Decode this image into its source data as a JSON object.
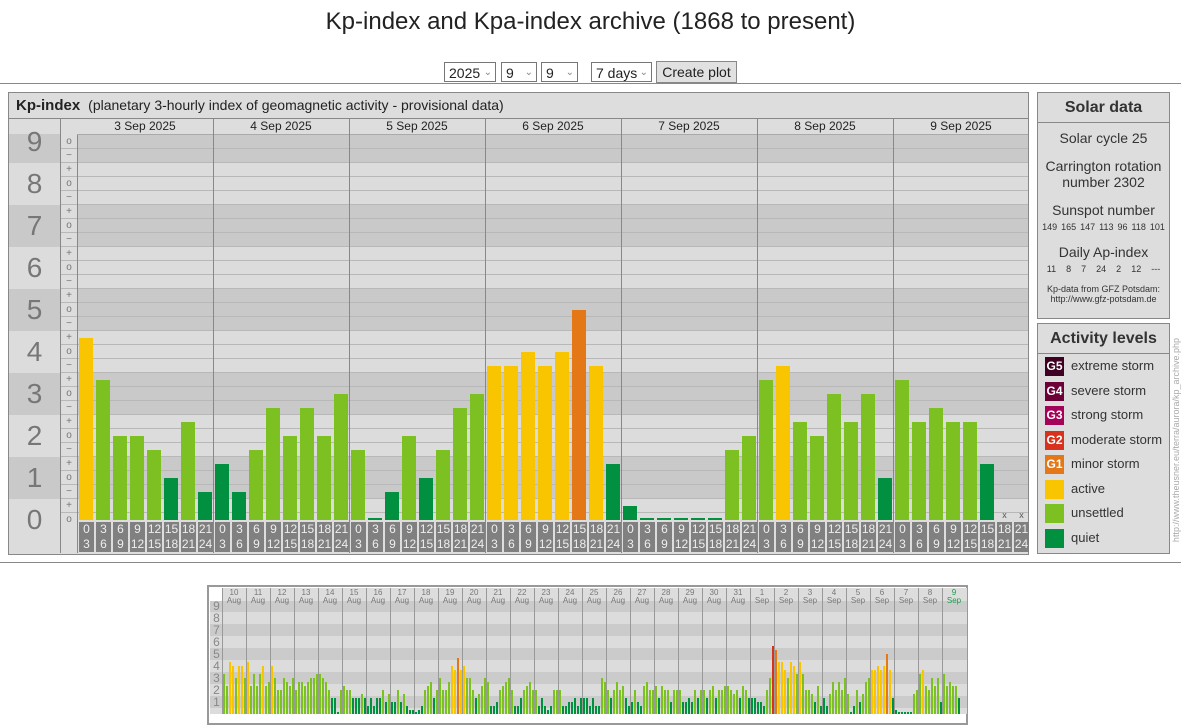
{
  "title": "Kp-index and Kpa-index archive (1868 to present)",
  "controls": {
    "year": "2025",
    "month": "9",
    "day": "9",
    "range": "7 days",
    "create_button": "Create plot"
  },
  "colors": {
    "quiet": "#00903f",
    "unsettled": "#7cc121",
    "active": "#f8c500",
    "G1": "#e47816",
    "G2": "#d8311d",
    "G3": "#a5035a",
    "G4": "#6e0038",
    "G5": "#3f0022"
  },
  "chart_data": [
    {
      "type": "bar",
      "title": "Kp-index",
      "subtitle": "(planetary 3-hourly index of geomagnetic activity - provisional data)",
      "ylim": [
        0,
        9
      ],
      "y_ticks": [
        "0",
        "1",
        "2",
        "3",
        "4",
        "5",
        "6",
        "7",
        "8",
        "9"
      ],
      "sub_ticks": {
        "minus": "−",
        "zero": "o",
        "plus": "+"
      },
      "missing_label": "x",
      "x_intervals": [
        [
          "0",
          "3"
        ],
        [
          "3",
          "6"
        ],
        [
          "6",
          "9"
        ],
        [
          "9",
          "12"
        ],
        [
          "12",
          "15"
        ],
        [
          "15",
          "18"
        ],
        [
          "18",
          "21"
        ],
        [
          "21",
          "24"
        ]
      ],
      "days": [
        {
          "label": "3 Sep 2025",
          "values": [
            4.33,
            3.33,
            2,
            2,
            1.67,
            1,
            2.33,
            0.67
          ]
        },
        {
          "label": "4 Sep 2025",
          "values": [
            1.33,
            0.67,
            1.67,
            2.67,
            2,
            2.67,
            2,
            3
          ]
        },
        {
          "label": "5 Sep 2025",
          "values": [
            1.67,
            0,
            0.67,
            2,
            1,
            1.67,
            2.67,
            3
          ]
        },
        {
          "label": "6 Sep 2025",
          "values": [
            3.67,
            3.67,
            4,
            3.67,
            4,
            5,
            3.67,
            1.33
          ]
        },
        {
          "label": "7 Sep 2025",
          "values": [
            0.33,
            0,
            0,
            0,
            0,
            0,
            1.67,
            2
          ]
        },
        {
          "label": "8 Sep 2025",
          "values": [
            3.33,
            3.67,
            2.33,
            2,
            3,
            2.33,
            3,
            1
          ]
        },
        {
          "label": "9 Sep 2025",
          "values": [
            3.33,
            2.33,
            2.67,
            2.33,
            2.33,
            1.33,
            null,
            null
          ]
        }
      ]
    },
    {
      "type": "bar",
      "title": "31-day overview",
      "ylim": [
        0,
        9
      ],
      "y_ticks": [
        "1",
        "2",
        "3",
        "4",
        "5",
        "6",
        "7",
        "8",
        "9"
      ],
      "days": [
        {
          "day": "10",
          "month": "Aug",
          "values": [
            3.33,
            2.33,
            4.33,
            4,
            3,
            4,
            4,
            3
          ]
        },
        {
          "day": "11",
          "month": "Aug",
          "values": [
            4.33,
            2.33,
            3.33,
            2.33,
            3.33,
            4,
            2.33,
            2.67
          ]
        },
        {
          "day": "12",
          "month": "Aug",
          "values": [
            4,
            3,
            2,
            2,
            3,
            2.67,
            2.33,
            3
          ]
        },
        {
          "day": "13",
          "month": "Aug",
          "values": [
            2,
            2.67,
            2.67,
            2.33,
            2.67,
            3,
            3,
            3.33
          ]
        },
        {
          "day": "14",
          "month": "Aug",
          "values": [
            3.33,
            3,
            2.67,
            2,
            1.33,
            1.33,
            0,
            2
          ]
        },
        {
          "day": "15",
          "month": "Aug",
          "values": [
            2.33,
            2,
            2,
            1.33,
            1.33,
            1.33,
            1.67,
            1.33
          ]
        },
        {
          "day": "16",
          "month": "Aug",
          "values": [
            0.67,
            1.33,
            0.67,
            1.33,
            1.33,
            2,
            1,
            1.67
          ]
        },
        {
          "day": "17",
          "month": "Aug",
          "values": [
            1,
            1,
            2,
            1,
            1.67,
            0.67,
            0.33,
            0.33
          ]
        },
        {
          "day": "18",
          "month": "Aug",
          "values": [
            0,
            0.33,
            0.67,
            2,
            2.33,
            2.67,
            1.33,
            2
          ]
        },
        {
          "day": "19",
          "month": "Aug",
          "values": [
            3,
            2,
            2,
            2.67,
            4,
            3.67,
            4.67,
            3.67
          ]
        },
        {
          "day": "20",
          "month": "Aug",
          "values": [
            4,
            3,
            3,
            2,
            1.33,
            1.67,
            2.33,
            3
          ]
        },
        {
          "day": "21",
          "month": "Aug",
          "values": [
            2.67,
            0.67,
            0.67,
            1,
            2,
            2.33,
            2.67,
            3
          ]
        },
        {
          "day": "22",
          "month": "Aug",
          "values": [
            2,
            0.67,
            0.67,
            1.33,
            2,
            2.33,
            2.67,
            2
          ]
        },
        {
          "day": "23",
          "month": "Aug",
          "values": [
            2,
            0.67,
            1.33,
            0.67,
            0.33,
            0.67,
            2,
            2
          ]
        },
        {
          "day": "24",
          "month": "Aug",
          "values": [
            2,
            0.67,
            0.67,
            1,
            1,
            1.33,
            0.67,
            1.33
          ]
        },
        {
          "day": "25",
          "month": "Aug",
          "values": [
            1.33,
            1.33,
            0.67,
            1.33,
            0.67,
            0.67,
            3,
            2.67
          ]
        },
        {
          "day": "26",
          "month": "Aug",
          "values": [
            2,
            1.33,
            2,
            2.67,
            2,
            2.33,
            1.33,
            0.67
          ]
        },
        {
          "day": "27",
          "month": "Aug",
          "values": [
            1,
            2,
            1,
            0.67,
            2.33,
            2.67,
            2,
            2
          ]
        },
        {
          "day": "28",
          "month": "Aug",
          "values": [
            2.33,
            1.33,
            2.33,
            2,
            2,
            1,
            2,
            2
          ]
        },
        {
          "day": "29",
          "month": "Aug",
          "values": [
            2,
            1,
            1,
            1.33,
            1,
            2,
            1.33,
            2
          ]
        },
        {
          "day": "30",
          "month": "Aug",
          "values": [
            2,
            1.33,
            2,
            2.33,
            1.33,
            2,
            2,
            2.33
          ]
        },
        {
          "day": "31",
          "month": "Aug",
          "values": [
            2.33,
            2,
            1.67,
            2,
            1.33,
            2.33,
            2,
            1.33
          ]
        },
        {
          "day": "1",
          "month": "Sep",
          "values": [
            1.33,
            1.33,
            1,
            1,
            0.67,
            2,
            3,
            5.67
          ]
        },
        {
          "day": "2",
          "month": "Sep",
          "values": [
            5.33,
            4.33,
            4.33,
            3.67,
            3,
            4.33,
            4,
            3.33
          ]
        },
        {
          "day": "3",
          "month": "Sep",
          "values": [
            4.33,
            3.33,
            2,
            2,
            1.67,
            1,
            2.33,
            0.67
          ]
        },
        {
          "day": "4",
          "month": "Sep",
          "values": [
            1.33,
            0.67,
            1.67,
            2.67,
            2,
            2.67,
            2,
            3
          ]
        },
        {
          "day": "5",
          "month": "Sep",
          "values": [
            1.67,
            0,
            0.67,
            2,
            1,
            1.67,
            2.67,
            3
          ]
        },
        {
          "day": "6",
          "month": "Sep",
          "values": [
            3.67,
            3.67,
            4,
            3.67,
            4,
            5,
            3.67,
            1.33
          ]
        },
        {
          "day": "7",
          "month": "Sep",
          "values": [
            0.33,
            0,
            0,
            0,
            0,
            0,
            1.67,
            2
          ]
        },
        {
          "day": "8",
          "month": "Sep",
          "values": [
            3.33,
            3.67,
            2.33,
            2,
            3,
            2.33,
            3,
            1
          ]
        },
        {
          "day": "9",
          "month": "Sep",
          "values": [
            3.33,
            2.33,
            2.67,
            2.33,
            2.33,
            1.33,
            null,
            null
          ]
        }
      ]
    }
  ],
  "solar": {
    "title": "Solar data",
    "cycle": "Solar cycle 25",
    "carrington_1": "Carrington rotation",
    "carrington_2": "number 2302",
    "sunspot_title": "Sunspot number",
    "sunspots": [
      "149",
      "165",
      "147",
      "113",
      "96",
      "118",
      "101"
    ],
    "ap_title": "Daily Ap-index",
    "ap": [
      "11",
      "8",
      "7",
      "24",
      "2",
      "12",
      "---"
    ],
    "credit_1": "Kp-data from GFZ Potsdam:",
    "credit_2": "http://www.gfz-potsdam.de"
  },
  "legend": {
    "title": "Activity levels",
    "items": [
      {
        "code": "G5",
        "label": "extreme storm",
        "color": "#3f0022"
      },
      {
        "code": "G4",
        "label": "severe storm",
        "color": "#6e0038"
      },
      {
        "code": "G3",
        "label": "strong storm",
        "color": "#a5035a"
      },
      {
        "code": "G2",
        "label": "moderate storm",
        "color": "#d8311d"
      },
      {
        "code": "G1",
        "label": "minor storm",
        "color": "#e47816"
      },
      {
        "code": "",
        "label": "active",
        "color": "#f8c500"
      },
      {
        "code": "",
        "label": "unsettled",
        "color": "#7cc121"
      },
      {
        "code": "",
        "label": "quiet",
        "color": "#00903f"
      }
    ]
  },
  "watermark": "http://www.theusner.eu/terra/aurora/kp_archive.php"
}
